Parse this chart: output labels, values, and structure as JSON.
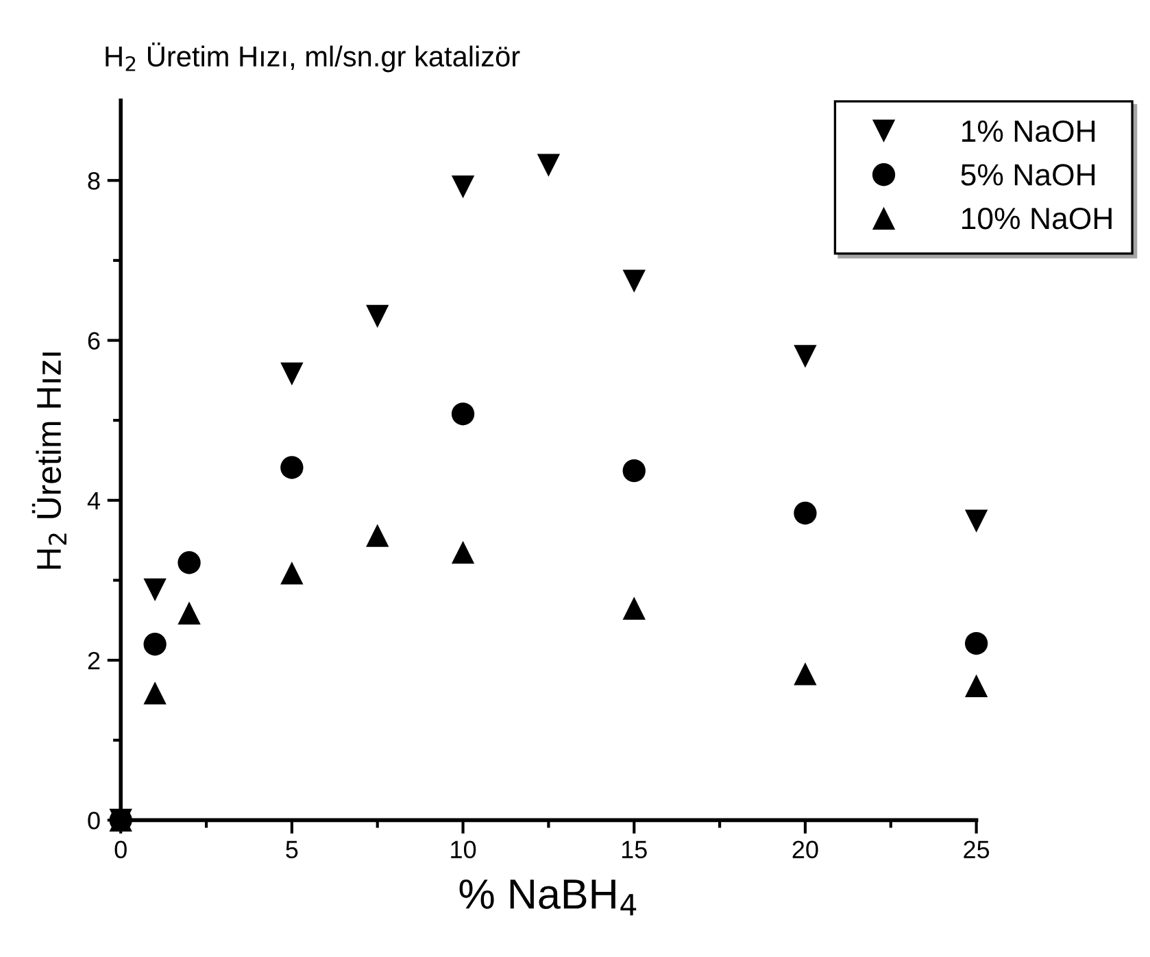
{
  "chart_data": {
    "type": "scatter",
    "title": "H$_{2}$ Üretim Hızı, ml/sn.gr katalizör",
    "xlabel": "% NaBH$_{4}$",
    "ylabel": "H$_{2}$ Üretim Hızı",
    "series": [
      {
        "name": "1% NaOH",
        "color": "#000000",
        "x": [
          0,
          1,
          5,
          7.5,
          10,
          12.5,
          15,
          20,
          25
        ],
        "values": [
          0,
          2.88,
          5.58,
          6.3,
          7.92,
          8.19,
          6.74,
          5.8,
          3.74
        ]
      },
      {
        "name": "5% NaOH",
        "color": "#000000",
        "marker": "circle",
        "x": [
          0,
          1,
          2,
          5,
          10,
          15,
          20,
          25
        ],
        "values": [
          0,
          2.2,
          3.22,
          4.41,
          5.08,
          4.37,
          3.84,
          2.21
        ]
      },
      {
        "name": "10% NaOH",
        "color": "#000000",
        "marker": "triangle",
        "x": [
          0,
          1,
          2,
          5,
          7.5,
          10,
          15,
          20,
          25
        ],
        "values": [
          0,
          1.59,
          2.59,
          3.09,
          3.56,
          3.35,
          2.65,
          1.83,
          1.68
        ]
      }
    ],
    "xlim": [
      0,
      25
    ],
    "ylim": [
      0,
      9
    ],
    "xticks": [
      0,
      {
        "value": 2.5,
        "label": null
      },
      5,
      {
        "value": 7.5,
        "label": null
      },
      10,
      {
        "value": 12.5,
        "label": null
      },
      15,
      {
        "value": 17.5,
        "label": null
      },
      20,
      {
        "value": 22.5,
        "label": null
      },
      25
    ],
    "yticks": [
      0,
      {
        "value": 1,
        "label": null
      },
      2,
      {
        "value": 3,
        "label": null
      },
      4,
      {
        "value": 5,
        "label": null
      },
      6,
      {
        "value": 7,
        "label": null
      },
      8
    ],
    "grid": false,
    "legend": "top right"
  }
}
